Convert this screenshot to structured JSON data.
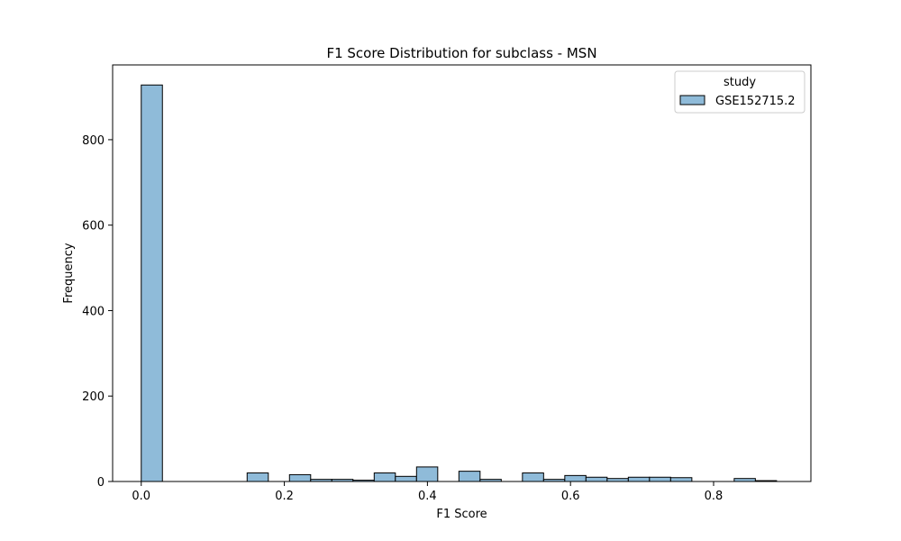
{
  "chart_data": {
    "type": "bar",
    "title": "F1 Score Distribution for subclass - MSN",
    "xlabel": "F1 Score",
    "ylabel": "Frequency",
    "xlim": [
      -0.04,
      0.936
    ],
    "ylim": [
      0,
      975
    ],
    "x_ticks": [
      0.0,
      0.2,
      0.4,
      0.6,
      0.8
    ],
    "x_tick_labels": [
      "0.0",
      "0.2",
      "0.4",
      "0.6",
      "0.8"
    ],
    "y_ticks": [
      0,
      200,
      400,
      600,
      800
    ],
    "y_tick_labels": [
      "0",
      "200",
      "400",
      "600",
      "800"
    ],
    "bin_width": 0.0296,
    "bin_starts": [
      0.0,
      0.0296,
      0.0592,
      0.0888,
      0.1184,
      0.148,
      0.1776,
      0.2072,
      0.2368,
      0.2664,
      0.296,
      0.3256,
      0.3552,
      0.3848,
      0.4144,
      0.444,
      0.4736,
      0.5032,
      0.5328,
      0.5624,
      0.592,
      0.6216,
      0.6512,
      0.6808,
      0.7104,
      0.74,
      0.7696,
      0.7992,
      0.8288,
      0.8584
    ],
    "series": [
      {
        "name": "GSE152715.2",
        "color": "#8fbbd9",
        "edge_color": "#000000",
        "values": [
          928,
          0,
          0,
          0,
          0,
          20,
          0,
          16,
          5,
          5,
          3,
          20,
          12,
          34,
          0,
          24,
          5,
          0,
          20,
          5,
          14,
          10,
          7,
          10,
          10,
          9,
          0,
          0,
          7,
          2
        ]
      }
    ],
    "legend": {
      "title": "study",
      "position": "top-right"
    },
    "grid": false
  }
}
